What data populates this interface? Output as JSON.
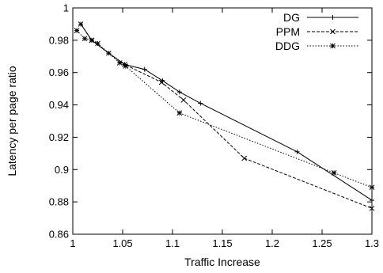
{
  "chart_data": {
    "type": "line",
    "title": "",
    "xlabel": "Traffic Increase",
    "ylabel": "Latency per page ratio",
    "xlim": [
      1.0,
      1.3
    ],
    "ylim": [
      0.86,
      1.0
    ],
    "x_ticks": [
      1,
      1.05,
      1.1,
      1.15,
      1.2,
      1.25,
      1.3
    ],
    "y_ticks": [
      0.86,
      0.88,
      0.9,
      0.92,
      0.94,
      0.96,
      0.98,
      1
    ],
    "x_tick_labels": [
      "1",
      "1.05",
      "1.1",
      "1.15",
      "1.2",
      "1.25",
      "1.3"
    ],
    "y_tick_labels": [
      "0.86",
      "0.88",
      "0.9",
      "0.92",
      "0.94",
      "0.96",
      "0.98",
      "1"
    ],
    "grid": false,
    "legend_position": "top-right",
    "series": [
      {
        "name": "DG",
        "line_style": "solid",
        "marker": "plus",
        "points": [
          [
            1.008,
            0.99
          ],
          [
            1.019,
            0.98
          ],
          [
            1.036,
            0.972
          ],
          [
            1.052,
            0.965
          ],
          [
            1.072,
            0.962
          ],
          [
            1.09,
            0.955
          ],
          [
            1.107,
            0.948
          ],
          [
            1.128,
            0.941
          ],
          [
            1.225,
            0.911
          ],
          [
            1.3,
            0.881
          ]
        ]
      },
      {
        "name": "PPM",
        "line_style": "dashed",
        "marker": "cross",
        "points": [
          [
            1.008,
            0.99
          ],
          [
            1.019,
            0.98
          ],
          [
            1.036,
            0.972
          ],
          [
            1.052,
            0.965
          ],
          [
            1.089,
            0.954
          ],
          [
            1.111,
            0.943
          ],
          [
            1.172,
            0.907
          ],
          [
            1.3,
            0.876
          ]
        ]
      },
      {
        "name": "DDG",
        "line_style": "dotted",
        "marker": "star",
        "points": [
          [
            1.004,
            0.986
          ],
          [
            1.012,
            0.981
          ],
          [
            1.019,
            0.98
          ],
          [
            1.025,
            0.978
          ],
          [
            1.047,
            0.966
          ],
          [
            1.053,
            0.964
          ],
          [
            1.107,
            0.935
          ],
          [
            1.262,
            0.898
          ],
          [
            1.3,
            0.889
          ]
        ]
      }
    ]
  }
}
